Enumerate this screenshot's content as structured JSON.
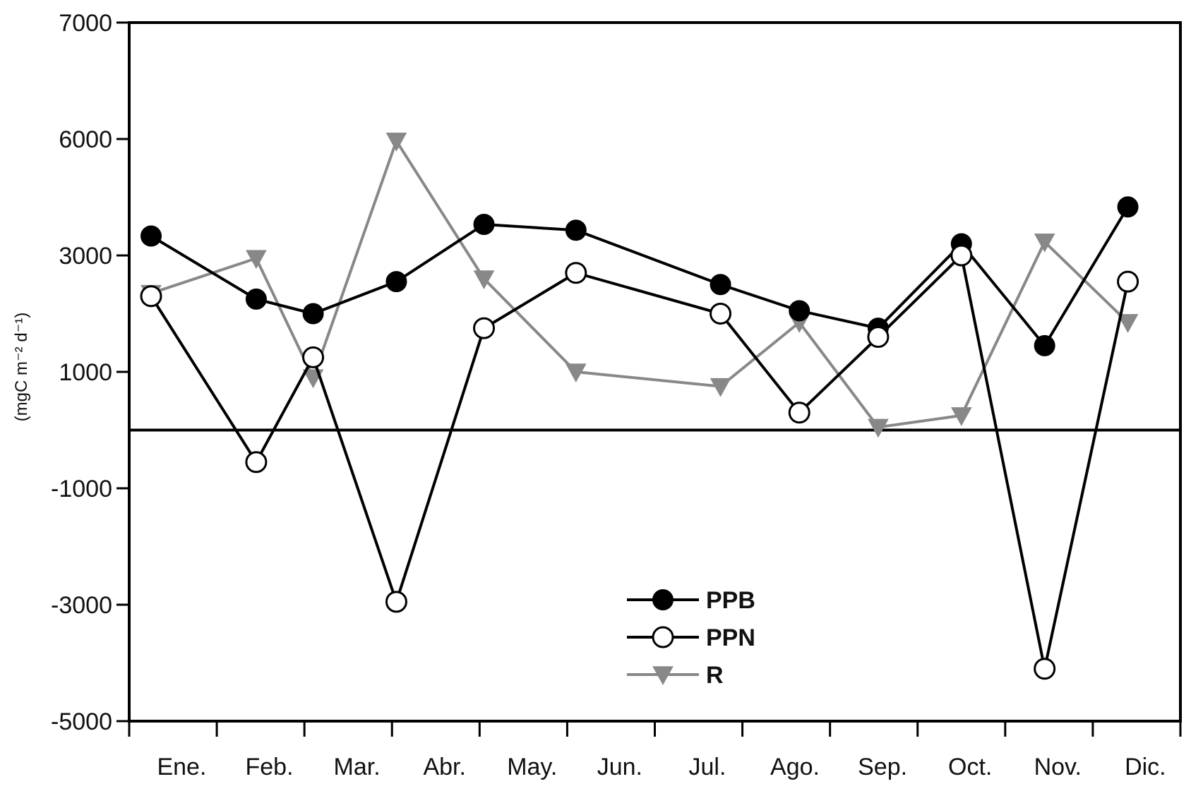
{
  "chart_data": {
    "type": "line",
    "title": "",
    "xlabel": "",
    "ylabel": "(mgC m⁻² d⁻¹)",
    "categories": [
      "Ene.",
      "Feb.",
      "Mar.",
      "Abr.",
      "May.",
      "Jun.",
      "Jul.",
      "Ago.",
      "Sep.",
      "Oct.",
      "Nov.",
      "Dic."
    ],
    "ylim": [
      -5000,
      7000
    ],
    "yticks": [
      7000,
      6000,
      3000,
      1000,
      -1000,
      -3000,
      -5000
    ],
    "zero_line": 0,
    "grid": false,
    "legend_position": "bottom-center",
    "series": [
      {
        "name": "PPB",
        "color": "#000000",
        "marker": "filled-circle",
        "x": [
          0.25,
          1.45,
          2.1,
          3.05,
          4.05,
          5.1,
          6.75,
          7.65,
          8.55,
          9.5,
          10.45,
          11.4
        ],
        "values": [
          3500,
          2250,
          2000,
          2550,
          3800,
          3650,
          2500,
          2050,
          1750,
          3300,
          1450,
          4250
        ]
      },
      {
        "name": "PPN",
        "color": "#000000",
        "marker": "open-circle",
        "x": [
          0.25,
          1.45,
          2.1,
          3.05,
          4.05,
          5.1,
          6.75,
          7.65,
          8.55,
          9.5,
          10.45,
          11.4
        ],
        "values": [
          2300,
          -550,
          1250,
          -2950,
          1750,
          2700,
          2000,
          300,
          1600,
          3000,
          -4100,
          2550
        ]
      },
      {
        "name": "R",
        "color": "#888888",
        "marker": "down-triangle",
        "x": [
          0.25,
          1.45,
          2.1,
          3.05,
          4.05,
          5.1,
          6.75,
          7.65,
          8.55,
          9.5,
          10.45,
          11.4
        ],
        "values": [
          2350,
          2950,
          900,
          5950,
          2600,
          1000,
          750,
          1850,
          50,
          250,
          3350,
          1850
        ]
      }
    ]
  }
}
